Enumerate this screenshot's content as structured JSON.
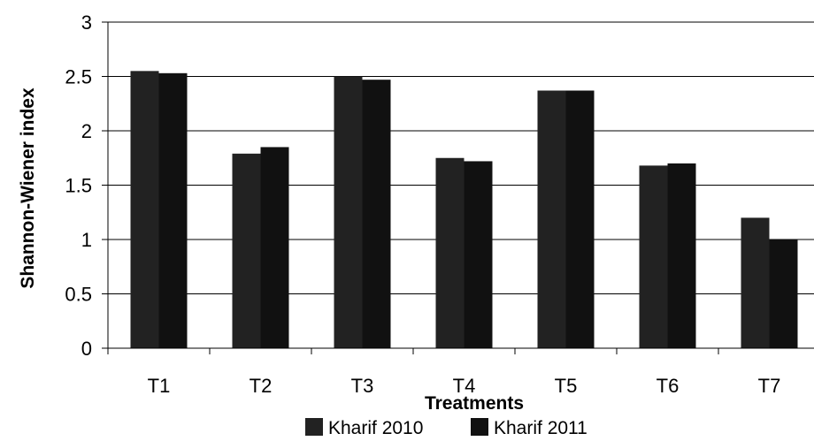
{
  "chart_data": {
    "type": "bar",
    "title": "",
    "xlabel": "Treatments",
    "ylabel": "Shannon-Wiener index",
    "categories": [
      "T1",
      "T2",
      "T3",
      "T4",
      "T5",
      "T6",
      "T7"
    ],
    "series": [
      {
        "name": "Kharif 2010",
        "values": [
          2.55,
          1.79,
          2.5,
          1.75,
          2.37,
          1.68,
          1.2
        ],
        "color": "#222222"
      },
      {
        "name": "Kharif 2011",
        "values": [
          2.53,
          1.85,
          2.47,
          1.72,
          2.37,
          1.7,
          1.0
        ],
        "color": "#111111"
      }
    ],
    "ylim": [
      0,
      3
    ],
    "yticks": [
      0,
      0.5,
      1,
      1.5,
      2,
      2.5,
      3
    ],
    "ytick_labels": [
      "0",
      "0.5",
      "1",
      "1.5",
      "2",
      "2.5",
      "3"
    ],
    "grid": true,
    "legend_position": "bottom"
  }
}
